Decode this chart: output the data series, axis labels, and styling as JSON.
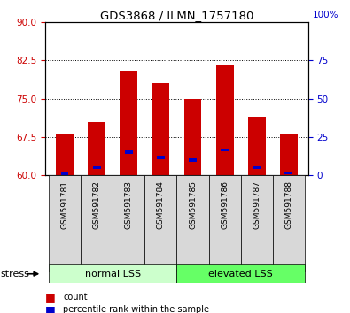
{
  "title": "GDS3868 / ILMN_1757180",
  "samples": [
    "GSM591781",
    "GSM591782",
    "GSM591783",
    "GSM591784",
    "GSM591785",
    "GSM591786",
    "GSM591787",
    "GSM591788"
  ],
  "bar_heights": [
    68.2,
    70.5,
    80.5,
    78.0,
    75.0,
    81.5,
    71.5,
    68.2
  ],
  "blue_values": [
    60.3,
    61.5,
    64.5,
    63.5,
    63.0,
    65.0,
    61.5,
    60.5
  ],
  "ymin": 60,
  "ymax": 90,
  "yticks_left": [
    60,
    67.5,
    75,
    82.5,
    90
  ],
  "yticks_right": [
    0,
    25,
    50,
    75
  ],
  "right_top_label": "100%",
  "bar_color": "#cc0000",
  "blue_color": "#0000cc",
  "bar_width": 0.55,
  "group1_label": "normal LSS",
  "group2_label": "elevated LSS",
  "group1_indices": [
    0,
    1,
    2,
    3
  ],
  "group2_indices": [
    4,
    5,
    6,
    7
  ],
  "stress_label": "stress",
  "legend_count": "count",
  "legend_pct": "percentile rank within the sample",
  "group1_color": "#ccffcc",
  "group2_color": "#66ff66",
  "xtick_bg": "#d8d8d8",
  "background_color": "#ffffff",
  "tick_color_left": "#cc0000",
  "tick_color_right": "#0000cc"
}
